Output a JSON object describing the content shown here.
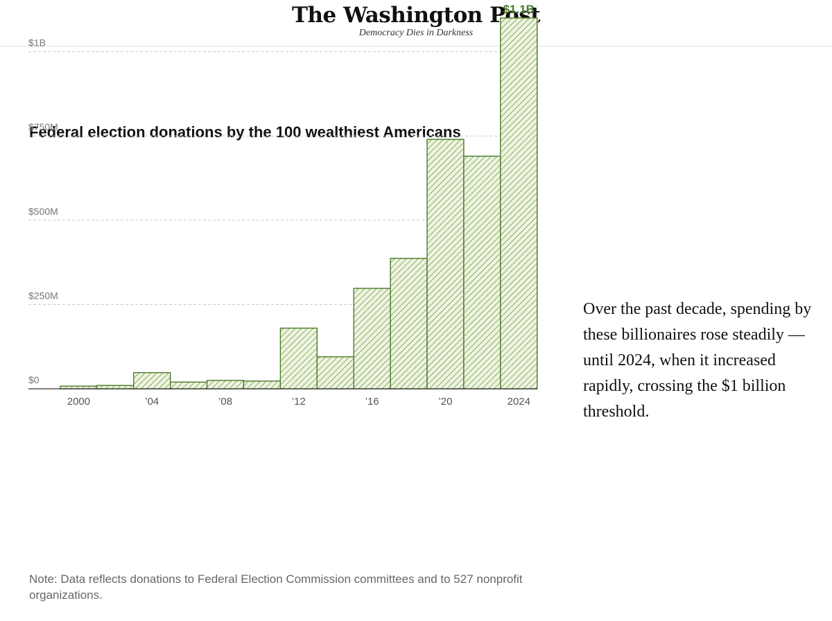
{
  "masthead": {
    "logo": "The Washington Post",
    "tagline": "Democracy Dies in Darkness"
  },
  "chart_data": {
    "type": "bar",
    "title": "Federal election donations by the 100 wealthiest Americans",
    "categories": [
      2000,
      2002,
      2004,
      2006,
      2008,
      2010,
      2012,
      2014,
      2016,
      2018,
      2020,
      2022,
      2024
    ],
    "values": [
      8,
      10,
      48,
      20,
      25,
      23,
      180,
      95,
      298,
      387,
      740,
      690,
      1100
    ],
    "unit": "millions USD",
    "ylim": [
      0,
      1100
    ],
    "yticks": [
      {
        "value": 0,
        "label": "$0"
      },
      {
        "value": 250,
        "label": "$250M"
      },
      {
        "value": 500,
        "label": "$500M"
      },
      {
        "value": 750,
        "label": "$750M"
      },
      {
        "value": 1000,
        "label": "$1B"
      }
    ],
    "xticks": [
      {
        "index": 0,
        "label": "2000"
      },
      {
        "index": 2,
        "label": "’04"
      },
      {
        "index": 4,
        "label": "’08"
      },
      {
        "index": 6,
        "label": "’12"
      },
      {
        "index": 8,
        "label": "’16"
      },
      {
        "index": 10,
        "label": "’20"
      },
      {
        "index": 12,
        "label": "2024"
      }
    ],
    "callout": {
      "index": 12,
      "label": "$1.1B"
    },
    "grid": true,
    "bar_stroke": "#4a7a2b",
    "bar_fill": "#eef4df",
    "hatch": "#6f9a4a"
  },
  "annotation": "Over the past decade, spending by these billionaires rose steadily — until 2024, when it increased rapidly, crossing the $1 billion threshold.",
  "note": "Note: Data reflects donations to Federal Election Commission committees and to 527 nonprofit organizations."
}
